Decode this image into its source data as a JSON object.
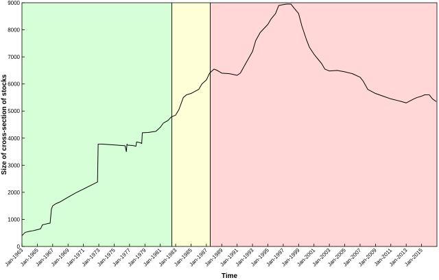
{
  "chart_data": {
    "type": "line",
    "xlabel": "Time",
    "ylabel": "Size of cross-section of stocks",
    "ylim": [
      0,
      9000
    ],
    "xlim": [
      "1963-01",
      "2017-01"
    ],
    "yticks": [
      0,
      1000,
      2000,
      3000,
      4000,
      5000,
      6000,
      7000,
      8000,
      9000
    ],
    "xticks": [
      "1963-01",
      "1965-01",
      "1967-01",
      "1969-01",
      "1971-01",
      "1973-01",
      "1975-01",
      "1977-01",
      "1979-01",
      "1981-01",
      "1983-01",
      "1985-01",
      "1987-01",
      "1989-01",
      "1991-01",
      "1993-01",
      "1995-01",
      "1997-01",
      "1999-01",
      "2001-01",
      "2003-01",
      "2005-01",
      "2007-01",
      "2009-01",
      "2011-01",
      "2013-01",
      "2015-01"
    ],
    "xtick_labels": [
      "Jan-1963",
      "Jan-1965",
      "Jan-1967",
      "Jan-1969",
      "Jan-1971",
      "Jan-1973",
      "Jan-1975",
      "Jan-1977",
      "Jan-1979",
      "Jan-1981",
      "Jan-1983",
      "Jan-1985",
      "Jan-1987",
      "Jan-1989",
      "Jan-1991",
      "Jan-1993",
      "Jan-1995",
      "Jan-1997",
      "Jan-1999",
      "Jan-2001",
      "Jan-2003",
      "Jan-2005",
      "Jan-2007",
      "Jan-2009",
      "Jan-2011",
      "Jan-2013",
      "Jan-2015"
    ],
    "regions": [
      {
        "start": "1963-01",
        "end": "1982-07",
        "color": "#d7ffd7"
      },
      {
        "start": "1982-07",
        "end": "1987-07",
        "color": "#ffffd7"
      },
      {
        "start": "1987-07",
        "end": "2017-01",
        "color": "#ffd7d7"
      }
    ],
    "grid": false,
    "series": [
      {
        "color": "#000000",
        "x": [
          "1963-01",
          "1963-06",
          "1964-01",
          "1964-06",
          "1965-01",
          "1965-06",
          "1965-09",
          "1966-01",
          "1966-06",
          "1966-09",
          "1966-11",
          "1967-01",
          "1967-06",
          "1968-01",
          "1969-01",
          "1970-01",
          "1971-01",
          "1972-01",
          "1972-11",
          "1972-12",
          "1973-06",
          "1974-06",
          "1975-06",
          "1976-06",
          "1976-08",
          "1976-09",
          "1976-10",
          "1977-06",
          "1977-11",
          "1977-12",
          "1978-06",
          "1978-08",
          "1978-09",
          "1979-06",
          "1980-06",
          "1981-01",
          "1981-06",
          "1982-01",
          "1982-06",
          "1983-01",
          "1983-06",
          "1984-01",
          "1984-06",
          "1985-01",
          "1986-01",
          "1986-06",
          "1987-01",
          "1987-06",
          "1988-01",
          "1988-06",
          "1989-01",
          "1990-01",
          "1991-01",
          "1991-06",
          "1992-01",
          "1993-01",
          "1993-06",
          "1994-01",
          "1995-01",
          "1995-06",
          "1996-01",
          "1996-06",
          "1997-01",
          "1997-06",
          "1998-01",
          "1998-06",
          "1999-01",
          "1999-06",
          "2000-01",
          "2000-06",
          "2001-01",
          "2002-01",
          "2002-06",
          "2003-01",
          "2004-01",
          "2005-01",
          "2006-01",
          "2007-01",
          "2007-06",
          "2008-01",
          "2009-01",
          "2010-01",
          "2011-01",
          "2012-01",
          "2012-06",
          "2013-01",
          "2014-01",
          "2014-06",
          "2015-01",
          "2015-06",
          "2016-01",
          "2016-06",
          "2016-12"
        ],
        "y": [
          400,
          520,
          560,
          580,
          620,
          650,
          800,
          820,
          850,
          860,
          1380,
          1500,
          1580,
          1650,
          1820,
          1980,
          2120,
          2260,
          2380,
          3780,
          3780,
          3760,
          3740,
          3720,
          3500,
          3780,
          3740,
          3730,
          3700,
          3860,
          3830,
          3800,
          4200,
          4210,
          4250,
          4400,
          4560,
          4650,
          4780,
          4850,
          5050,
          5500,
          5600,
          5650,
          5800,
          6000,
          6150,
          6400,
          6550,
          6500,
          6400,
          6380,
          6320,
          6400,
          6700,
          7200,
          7600,
          7900,
          8200,
          8400,
          8600,
          8900,
          8930,
          8950,
          8950,
          8800,
          8600,
          8150,
          7650,
          7350,
          7100,
          6750,
          6550,
          6480,
          6500,
          6450,
          6380,
          6250,
          6100,
          5800,
          5650,
          5550,
          5450,
          5380,
          5350,
          5300,
          5450,
          5500,
          5550,
          5600,
          5600,
          5450,
          5350
        ]
      }
    ]
  }
}
